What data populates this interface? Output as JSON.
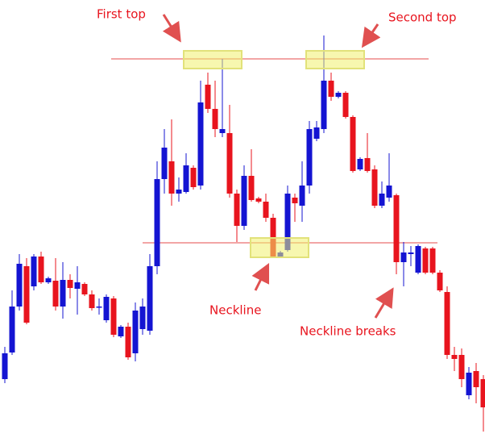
{
  "chart_data": {
    "type": "candlestick",
    "ylim": [
      0,
      543
    ],
    "up_color": "#1414d2",
    "down_color": "#e8141e",
    "open": [
      73,
      106,
      163,
      213,
      188,
      225,
      193,
      195,
      163,
      196,
      185,
      191,
      178,
      162,
      146,
      173,
      126,
      138,
      105,
      135,
      133,
      213,
      321,
      343,
      303,
      305,
      335,
      313,
      438,
      408,
      378,
      378,
      303,
      263,
      325,
      297,
      293,
      273,
      225,
      233,
      298,
      288,
      313,
      371,
      383,
      443,
      423,
      428,
      398,
      333,
      347,
      333,
      288,
      298,
      301,
      218,
      228,
      205,
      235,
      235,
      205,
      181,
      103,
      103,
      53,
      83,
      73
    ],
    "high": [
      113,
      183,
      228,
      223,
      228,
      231,
      200,
      223,
      218,
      203,
      213,
      193,
      183,
      173,
      178,
      176,
      140,
      143,
      168,
      173,
      228,
      343,
      383,
      395,
      323,
      353,
      338,
      443,
      453,
      443,
      470,
      413,
      308,
      338,
      358,
      299,
      303,
      278,
      232,
      313,
      303,
      343,
      393,
      393,
      499,
      453,
      430,
      430,
      400,
      348,
      378,
      338,
      318,
      353,
      303,
      243,
      238,
      240,
      237,
      237,
      208,
      188,
      113,
      111,
      88,
      93,
      78
    ],
    "low": [
      68,
      103,
      158,
      141,
      183,
      191,
      191,
      158,
      148,
      173,
      153,
      176,
      158,
      153,
      143,
      125,
      124,
      97,
      95,
      128,
      128,
      203,
      303,
      288,
      293,
      303,
      308,
      308,
      403,
      373,
      373,
      298,
      243,
      258,
      293,
      291,
      268,
      223,
      223,
      231,
      268,
      268,
      303,
      368,
      378,
      418,
      421,
      396,
      329,
      331,
      329,
      285,
      285,
      293,
      203,
      188,
      213,
      203,
      203,
      203,
      181,
      98,
      83,
      63,
      48,
      43,
      8
    ],
    "close": [
      105,
      163,
      216,
      143,
      225,
      193,
      198,
      163,
      196,
      186,
      193,
      178,
      161,
      163,
      175,
      128,
      138,
      100,
      158,
      163,
      213,
      321,
      360,
      303,
      308,
      338,
      311,
      416,
      408,
      383,
      383,
      303,
      263,
      325,
      295,
      293,
      273,
      225,
      230,
      303,
      291,
      313,
      383,
      385,
      443,
      423,
      428,
      398,
      331,
      346,
      331,
      288,
      303,
      313,
      218,
      230,
      230,
      238,
      205,
      205,
      183,
      103,
      98,
      73,
      81,
      63,
      38
    ],
    "levels": [
      {
        "value": 470,
        "color": "#f2a5a5"
      },
      {
        "value": 242,
        "color": "#f2a5a5"
      }
    ],
    "annotations": [
      "First top",
      "Second top",
      "Neckline",
      "Neckline breaks"
    ],
    "annotation_color": "#e8141e"
  }
}
